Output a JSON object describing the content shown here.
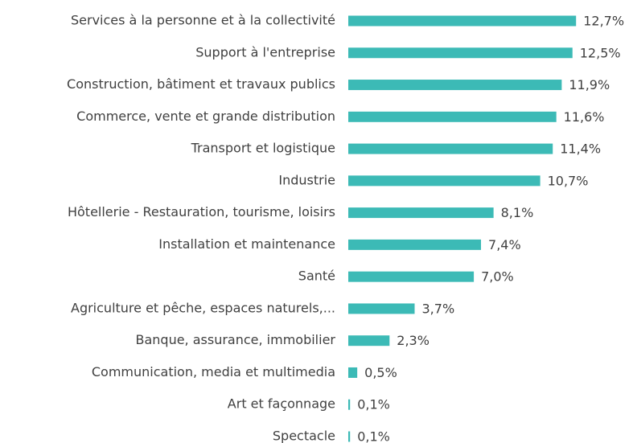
{
  "chart_data": {
    "type": "bar",
    "orientation": "horizontal",
    "color": "#3cbab6",
    "categories": [
      "Services à la personne et à la collectivité",
      "Support à l'entreprise",
      "Construction, bâtiment et travaux publics",
      "Commerce, vente et grande distribution",
      "Transport et logistique",
      "Industrie",
      "Hôtellerie - Restauration, tourisme, loisirs",
      "Installation et maintenance",
      "Santé",
      "Agriculture et pêche, espaces naturels,...",
      "Banque, assurance, immobilier",
      "Communication, media et multimedia",
      "Art et façonnage",
      "Spectacle"
    ],
    "values": [
      12.7,
      12.5,
      11.9,
      11.6,
      11.4,
      10.7,
      8.1,
      7.4,
      7.0,
      3.7,
      2.3,
      0.5,
      0.1,
      0.1
    ],
    "value_labels": [
      "12,7%",
      "12,5%",
      "11,9%",
      "11,6%",
      "11,4%",
      "10,7%",
      "8,1%",
      "7,4%",
      "7,0%",
      "3,7%",
      "2,3%",
      "0,5%",
      "0,1%",
      "0,1%"
    ]
  }
}
